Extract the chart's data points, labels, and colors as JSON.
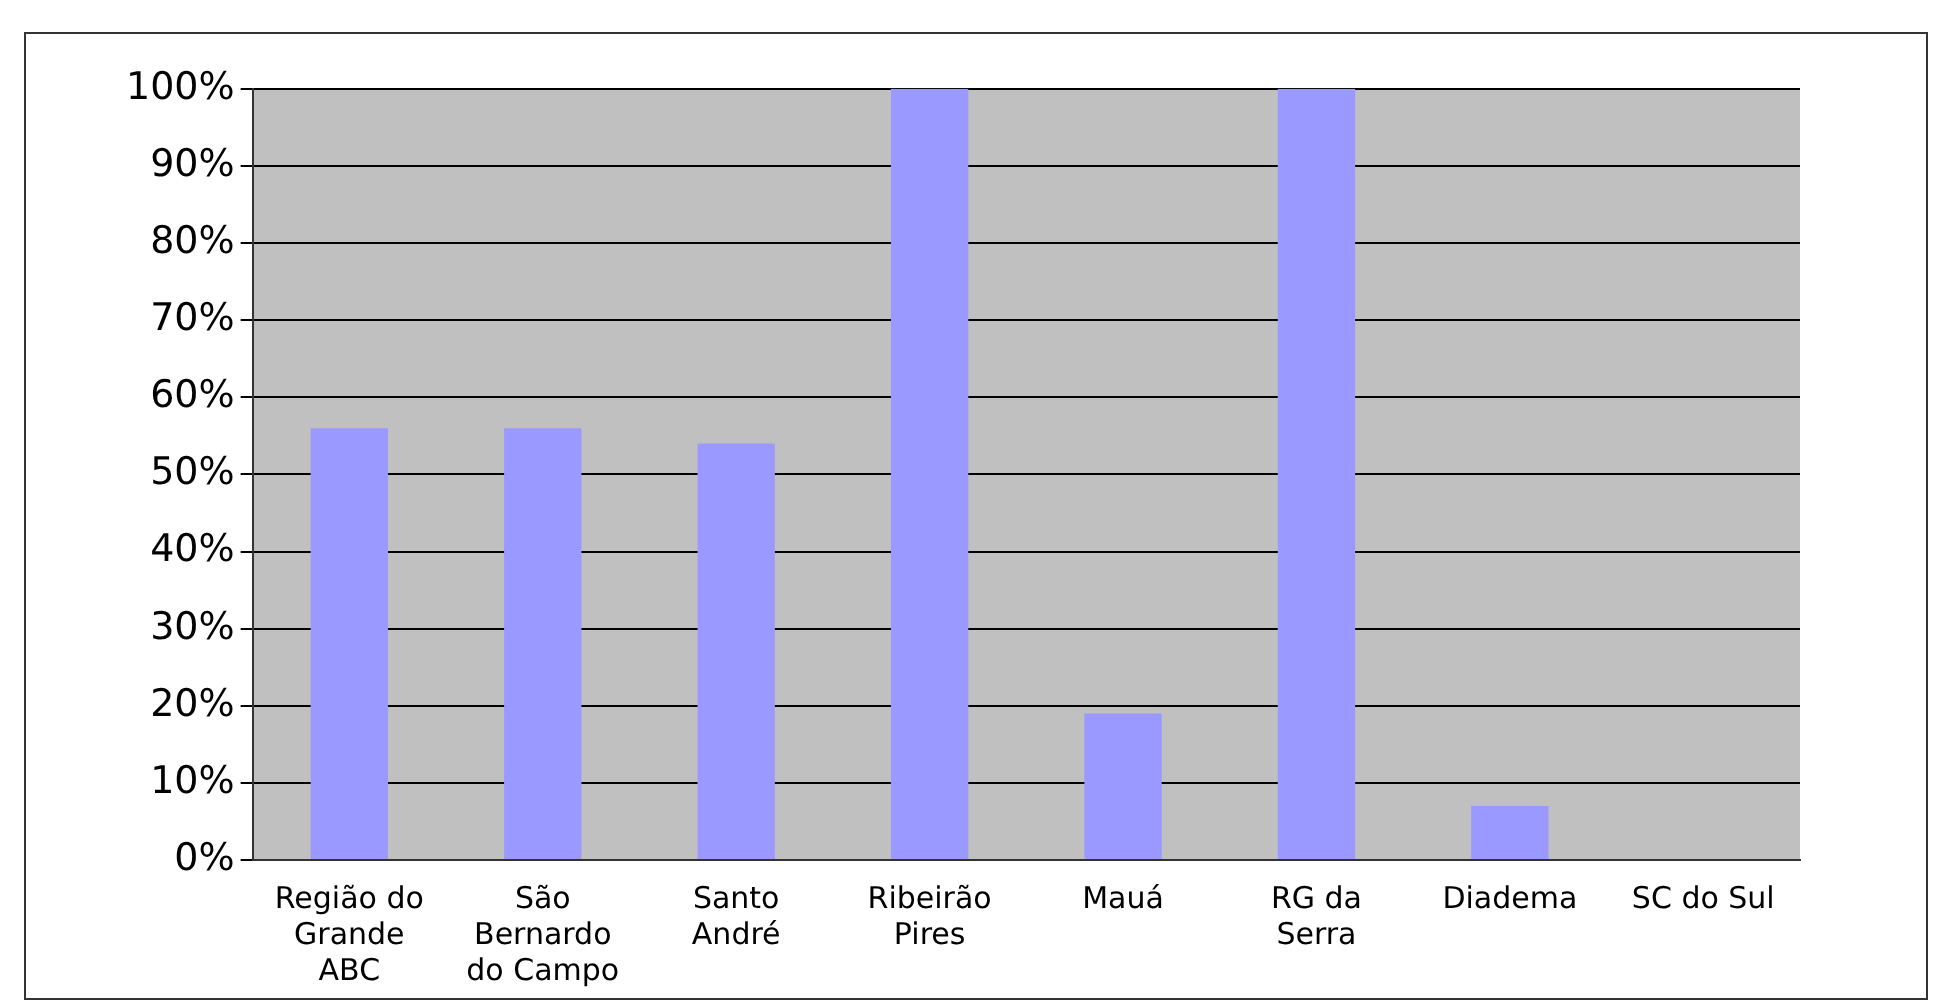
{
  "chart_data": {
    "type": "bar",
    "categories": [
      "Região do\nGrande\nABC",
      "São\nBernardo\ndo Campo",
      "Santo\nAndré",
      "Ribeirão\nPires",
      "Mauá",
      "RG da\nSerra",
      "Diadema",
      "SC do Sul"
    ],
    "values": [
      56,
      56,
      54,
      100,
      19,
      100,
      7,
      0
    ],
    "color": "#9999ff",
    "ylim": [
      0,
      100
    ],
    "yticks": [
      {
        "value": 0,
        "label": "0%"
      },
      {
        "value": 10,
        "label": "10%"
      },
      {
        "value": 20,
        "label": "20%"
      },
      {
        "value": 30,
        "label": "30%"
      },
      {
        "value": 40,
        "label": "40%"
      },
      {
        "value": 50,
        "label": "50%"
      },
      {
        "value": 60,
        "label": "60%"
      },
      {
        "value": 70,
        "label": "70%"
      },
      {
        "value": 80,
        "label": "80%"
      },
      {
        "value": 90,
        "label": "90%"
      },
      {
        "value": 100,
        "label": "100%"
      }
    ],
    "grid": "y",
    "legend": false
  }
}
